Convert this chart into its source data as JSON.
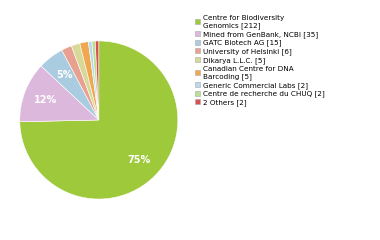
{
  "labels": [
    "Centre for Biodiversity\nGenomics [212]",
    "Mined from GenBank, NCBI [35]",
    "GATC Biotech AG [15]",
    "University of Helsinki [6]",
    "Dikarya L.L.C. [5]",
    "Canadian Centre for DNA\nBarcoding [5]",
    "Generic Commercial Labs [2]",
    "Centre de recherche du CHUQ [2]",
    "2 Others [2]"
  ],
  "values": [
    212,
    35,
    15,
    6,
    5,
    5,
    2,
    2,
    2
  ],
  "colors": [
    "#9dc93a",
    "#ddb8dd",
    "#aacce0",
    "#e8a090",
    "#d8d898",
    "#f0a850",
    "#b8d8f0",
    "#b8e090",
    "#d85050"
  ],
  "pct_threshold": 4,
  "figsize": [
    3.8,
    2.4
  ],
  "dpi": 100
}
